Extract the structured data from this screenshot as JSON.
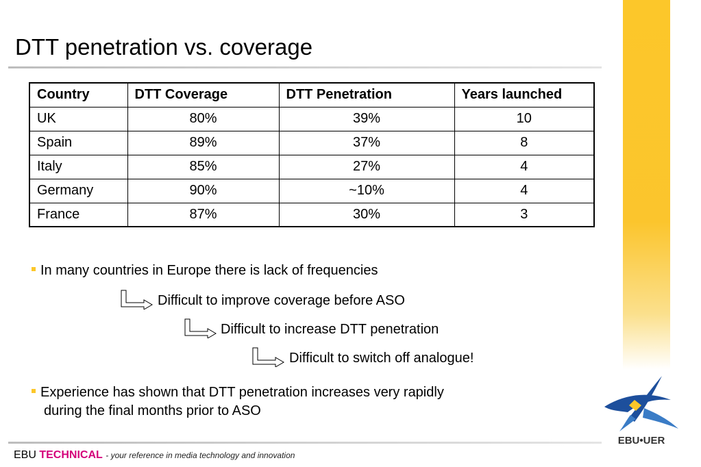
{
  "title": "DTT penetration vs. coverage",
  "table": {
    "headers": [
      "Country",
      "DTT Coverage",
      "DTT Penetration",
      "Years launched"
    ],
    "rows": [
      [
        "UK",
        "80%",
        "39%",
        "10"
      ],
      [
        "Spain",
        "89%",
        "37%",
        "8"
      ],
      [
        "Italy",
        "85%",
        "27%",
        "4"
      ],
      [
        "Germany",
        "90%",
        "~10%",
        "4"
      ],
      [
        "France",
        "87%",
        "30%",
        "3"
      ]
    ]
  },
  "bullets": {
    "first": "In many countries in Europe there is lack of frequencies",
    "arrow1": "Difficult to improve coverage before ASO",
    "arrow2": "Difficult to increase DTT penetration",
    "arrow3": "Difficult to switch off analogue!",
    "second_line1": "Experience has shown that DTT penetration increases very rapidly",
    "second_line2": "during the final months prior to ASO"
  },
  "footer": {
    "ebu": "EBU",
    "technical": "TECHNICAL",
    "tagline": "- your reference in media technology and innovation"
  },
  "logo": {
    "text": "EBU•UER"
  },
  "colors": {
    "accent": "#fcc72a",
    "brand": "#d4007a",
    "logo_blue": "#1d4f9c"
  }
}
